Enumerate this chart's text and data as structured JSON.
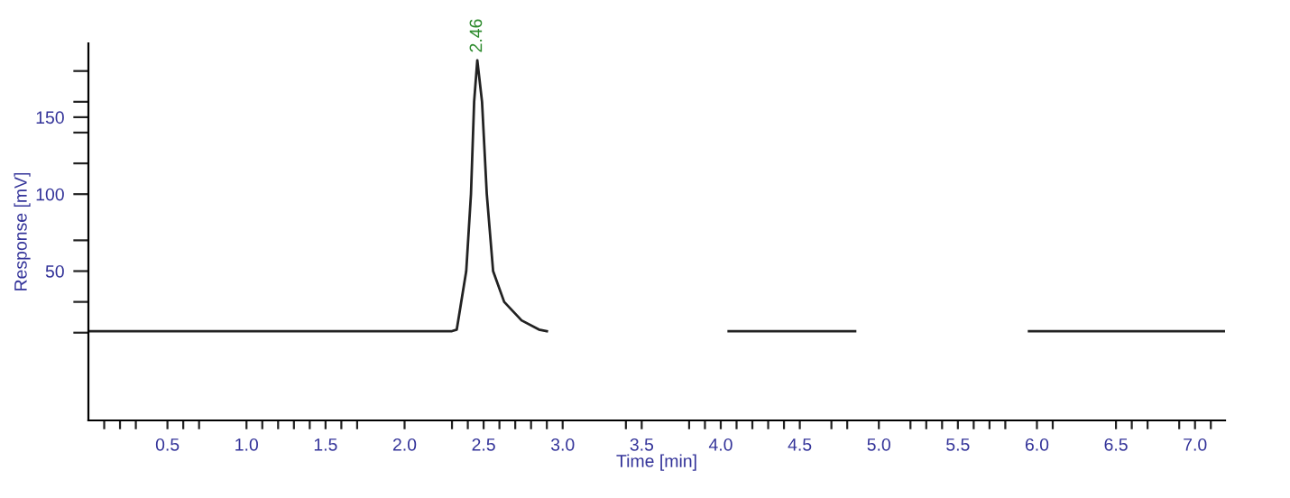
{
  "chart_data": {
    "type": "line",
    "xlabel": "Time [min]",
    "ylabel": "Response [mV]",
    "x": [
      0,
      0.5,
      1.0,
      1.5,
      2.0,
      2.3,
      2.33,
      2.39,
      2.42,
      2.44,
      2.46,
      2.49,
      2.52,
      2.56,
      2.63,
      2.74,
      2.85,
      2.9,
      2.91,
      4.05,
      4.85,
      4.86,
      5.95,
      7.19
    ],
    "series": [
      {
        "color": "#222222",
        "values": [
          11,
          11,
          11,
          11,
          11,
          11,
          12,
          50,
          100,
          160,
          187,
          160,
          100,
          50,
          30,
          18,
          12,
          11,
          null,
          11,
          11,
          null,
          11,
          11
        ]
      }
    ],
    "xlim": [
      0,
      7.19
    ],
    "xticks": [
      {
        "value": 0.1,
        "label": null
      },
      {
        "value": 0.2,
        "label": null
      },
      {
        "value": 0.3,
        "label": null
      },
      {
        "value": 0.5,
        "label": "0.5"
      },
      {
        "value": 0.6,
        "label": null
      },
      {
        "value": 0.7,
        "label": null
      },
      {
        "value": 1.0,
        "label": "1.0"
      },
      {
        "value": 1.1,
        "label": null
      },
      {
        "value": 1.2,
        "label": null
      },
      {
        "value": 1.3,
        "label": null
      },
      {
        "value": 1.4,
        "label": null
      },
      {
        "value": 1.5,
        "label": "1.5"
      },
      {
        "value": 1.6,
        "label": null
      },
      {
        "value": 1.7,
        "label": null
      },
      {
        "value": 2.0,
        "label": "2.0"
      },
      {
        "value": 2.3,
        "label": null
      },
      {
        "value": 2.4,
        "label": null
      },
      {
        "value": 2.5,
        "label": "2.5"
      },
      {
        "value": 2.6,
        "label": null
      },
      {
        "value": 2.7,
        "label": null
      },
      {
        "value": 2.8,
        "label": null
      },
      {
        "value": 2.9,
        "label": null
      },
      {
        "value": 3.0,
        "label": "3.0"
      },
      {
        "value": 3.4,
        "label": null
      },
      {
        "value": 3.5,
        "label": "3.5"
      },
      {
        "value": 3.8,
        "label": null
      },
      {
        "value": 3.9,
        "label": null
      },
      {
        "value": 4.0,
        "label": "4.0"
      },
      {
        "value": 4.1,
        "label": null
      },
      {
        "value": 4.2,
        "label": null
      },
      {
        "value": 4.3,
        "label": null
      },
      {
        "value": 4.4,
        "label": null
      },
      {
        "value": 4.5,
        "label": "4.5"
      },
      {
        "value": 4.7,
        "label": null
      },
      {
        "value": 4.8,
        "label": null
      },
      {
        "value": 5.0,
        "label": "5.0"
      },
      {
        "value": 5.2,
        "label": null
      },
      {
        "value": 5.3,
        "label": null
      },
      {
        "value": 5.4,
        "label": null
      },
      {
        "value": 5.5,
        "label": "5.5"
      },
      {
        "value": 5.6,
        "label": null
      },
      {
        "value": 5.7,
        "label": null
      },
      {
        "value": 5.8,
        "label": null
      },
      {
        "value": 6.0,
        "label": "6.0"
      },
      {
        "value": 6.1,
        "label": null
      },
      {
        "value": 6.5,
        "label": "6.5"
      },
      {
        "value": 6.6,
        "label": null
      },
      {
        "value": 6.7,
        "label": null
      },
      {
        "value": 6.9,
        "label": null
      },
      {
        "value": 7.0,
        "label": "7.0"
      },
      {
        "value": 7.1,
        "label": null
      }
    ],
    "ylim": [
      -47,
      198
    ],
    "yticks": [
      {
        "value": 10,
        "label": null
      },
      {
        "value": 30,
        "label": null
      },
      50,
      {
        "value": 70,
        "label": null
      },
      100,
      {
        "value": 120,
        "label": null
      },
      {
        "value": 140,
        "label": null
      },
      150,
      {
        "value": 160,
        "label": null
      },
      {
        "value": 180,
        "label": null
      }
    ],
    "annotations": [
      {
        "text": "2.46",
        "x": 2.46,
        "y": 187
      }
    ],
    "grid": false,
    "marker": "none",
    "line_style": "solid",
    "legend": false
  }
}
